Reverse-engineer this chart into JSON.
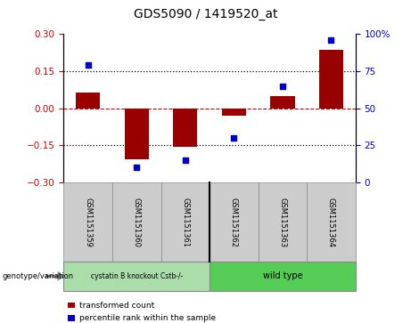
{
  "title": "GDS5090 / 1419520_at",
  "samples": [
    "GSM1151359",
    "GSM1151360",
    "GSM1151361",
    "GSM1151362",
    "GSM1151363",
    "GSM1151364"
  ],
  "bar_values": [
    0.065,
    -0.205,
    -0.155,
    -0.03,
    0.05,
    0.235
  ],
  "percentile_values": [
    79,
    10,
    15,
    30,
    65,
    96
  ],
  "ylim_left": [
    -0.3,
    0.3
  ],
  "ylim_right": [
    0,
    100
  ],
  "yticks_left": [
    -0.3,
    -0.15,
    0.0,
    0.15,
    0.3
  ],
  "yticks_right": [
    0,
    25,
    50,
    75,
    100
  ],
  "bar_color": "#990000",
  "scatter_color": "#0000CC",
  "zero_line_color": "#CC0000",
  "dot_line_color": "black",
  "group1_label": "cystatin B knockout Cstb-/-",
  "group2_label": "wild type",
  "group1_color": "#aaddaa",
  "group2_color": "#55cc55",
  "legend_bar_label": "transformed count",
  "legend_scatter_label": "percentile rank within the sample",
  "genotype_label": "genotype/variation",
  "bar_width": 0.5,
  "tick_label_color_left": "#CC0000",
  "tick_label_color_right": "#0000CC",
  "sample_box_color": "#cccccc",
  "sep_color": "black"
}
